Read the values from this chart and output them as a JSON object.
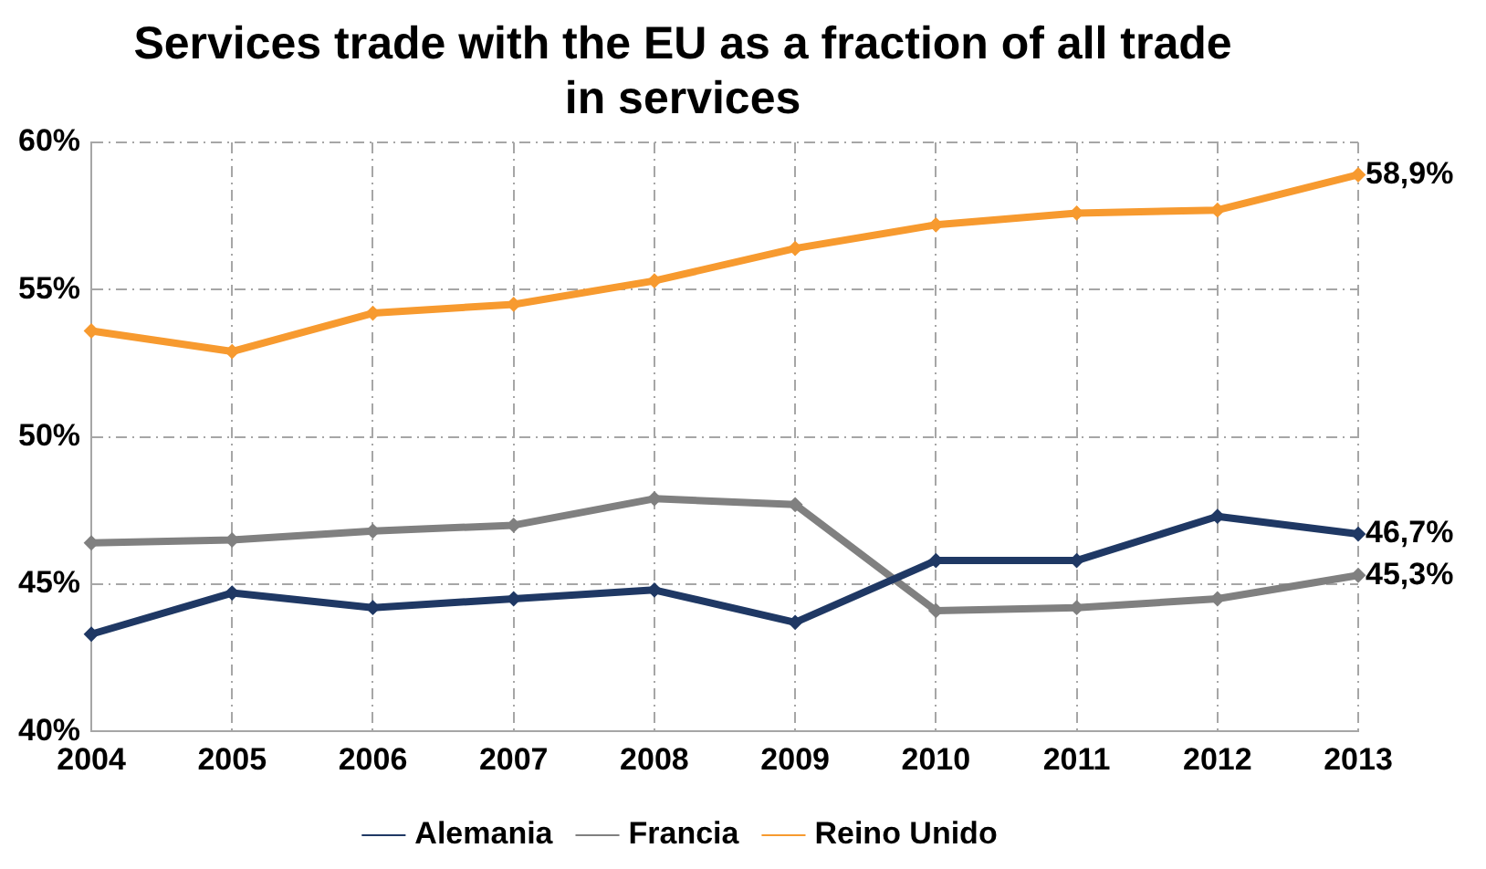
{
  "chart_data": {
    "type": "line",
    "title": "Services trade with the EU as a fraction of all trade in services",
    "categories": [
      "2004",
      "2005",
      "2006",
      "2007",
      "2008",
      "2009",
      "2010",
      "2011",
      "2012",
      "2013"
    ],
    "series": [
      {
        "name": "Alemania",
        "color": "#1f3864",
        "values": [
          43.3,
          44.7,
          44.2,
          44.5,
          44.8,
          43.7,
          45.8,
          45.8,
          47.3,
          46.7
        ],
        "value_labels": [
          null,
          null,
          null,
          null,
          null,
          null,
          null,
          null,
          null,
          "46,7%"
        ]
      },
      {
        "name": "Francia",
        "color": "#808080",
        "values": [
          46.4,
          46.5,
          46.8,
          47.0,
          47.9,
          47.7,
          44.1,
          44.2,
          44.5,
          45.3
        ],
        "value_labels": [
          null,
          null,
          null,
          null,
          null,
          null,
          null,
          null,
          null,
          "45,3%"
        ]
      },
      {
        "name": "Reino Unido",
        "color": "#f79a2f",
        "values": [
          53.6,
          52.9,
          54.2,
          54.5,
          55.3,
          56.4,
          57.2,
          57.6,
          57.7,
          58.9
        ],
        "value_labels": [
          null,
          null,
          null,
          null,
          null,
          null,
          null,
          null,
          null,
          "58,9%"
        ]
      }
    ],
    "ylim": [
      40,
      60
    ],
    "yticks": [
      {
        "value": 40,
        "label": "40%"
      },
      {
        "value": 45,
        "label": "45%"
      },
      {
        "value": 50,
        "label": "50%"
      },
      {
        "value": 55,
        "label": "55%"
      },
      {
        "value": 60,
        "label": "60%"
      }
    ],
    "grid": true,
    "legend": "bottom",
    "marker": "diamond",
    "line_style": "solid"
  }
}
